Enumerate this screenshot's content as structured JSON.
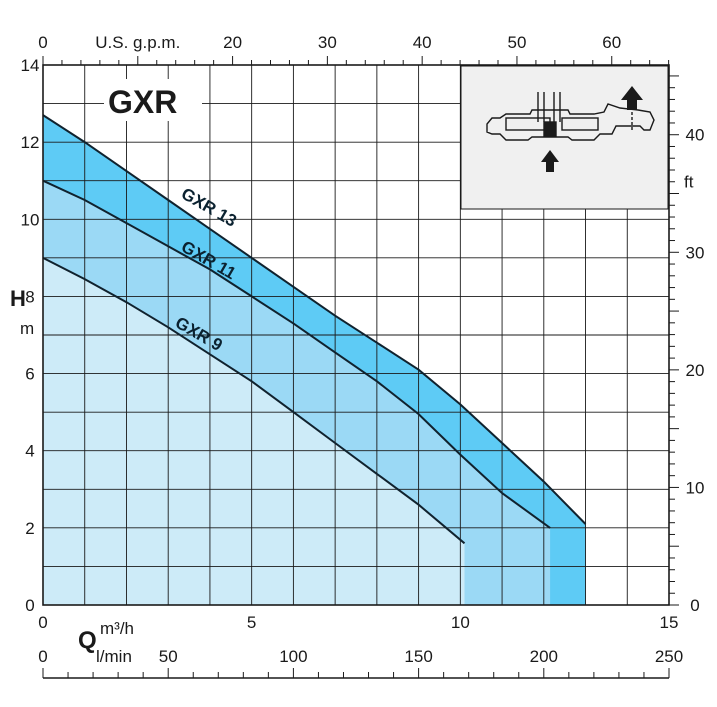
{
  "chart_data": {
    "type": "area",
    "title": "GXR",
    "x": {
      "label": "Q",
      "unit": "m³/h",
      "range": [
        0,
        15
      ],
      "ticks": [
        0,
        5,
        10,
        15
      ],
      "grid_step": 1
    },
    "x_secondary": [
      {
        "unit": "U.S. g.p.m.",
        "range": [
          0,
          66.04
        ],
        "ticks": [
          0,
          20,
          30,
          40,
          50,
          60
        ],
        "ticks_shown": [
          "0",
          "U.S. g.p.m.",
          "20",
          "30",
          "40",
          "50",
          "60"
        ]
      },
      {
        "unit": "l/min",
        "range": [
          0,
          250
        ],
        "ticks": [
          0,
          50,
          100,
          150,
          200,
          250
        ]
      }
    ],
    "y": {
      "label": "H",
      "unit": "m",
      "range": [
        0,
        14
      ],
      "ticks": [
        0,
        2,
        4,
        6,
        8,
        10,
        12,
        14
      ],
      "grid_step": 1
    },
    "y_secondary": {
      "unit": "ft",
      "range": [
        0,
        45.93
      ],
      "ticks": [
        0,
        10,
        20,
        30,
        40
      ],
      "unit_position_value": 36
    },
    "series": [
      {
        "name": "GXR 13",
        "color": "#5ecbf5",
        "x": [
          0,
          1,
          2,
          3,
          4,
          5,
          6,
          7,
          8,
          9,
          10,
          11,
          12,
          13
        ],
        "y": [
          12.7,
          12.0,
          11.25,
          10.5,
          9.75,
          9.0,
          8.25,
          7.5,
          6.8,
          6.1,
          5.2,
          4.2,
          3.2,
          2.1
        ]
      },
      {
        "name": "GXR 11",
        "color": "#9bd9f5",
        "x": [
          0,
          1,
          2,
          3,
          4,
          5,
          6,
          7,
          8,
          9,
          10,
          11,
          12.15
        ],
        "y": [
          11.0,
          10.5,
          9.9,
          9.3,
          8.7,
          8.0,
          7.3,
          6.55,
          5.8,
          4.95,
          3.9,
          2.9,
          2.0
        ]
      },
      {
        "name": "GXR 9",
        "color": "#cdebf8",
        "x": [
          0,
          1,
          2,
          3,
          4,
          5,
          6,
          7,
          8,
          9,
          10.1
        ],
        "y": [
          9.0,
          8.45,
          7.85,
          7.2,
          6.5,
          5.8,
          5.0,
          4.2,
          3.4,
          2.6,
          1.6
        ]
      }
    ],
    "curve_labels": [
      "GXR 13",
      "GXR 11",
      "GXR 9"
    ],
    "colors": {
      "grid": "#1a1a1a",
      "inset_bg": "#f0f0f0",
      "curve_line": "#10222e"
    }
  },
  "inset": {
    "icon": "pump-schematic-icon"
  }
}
